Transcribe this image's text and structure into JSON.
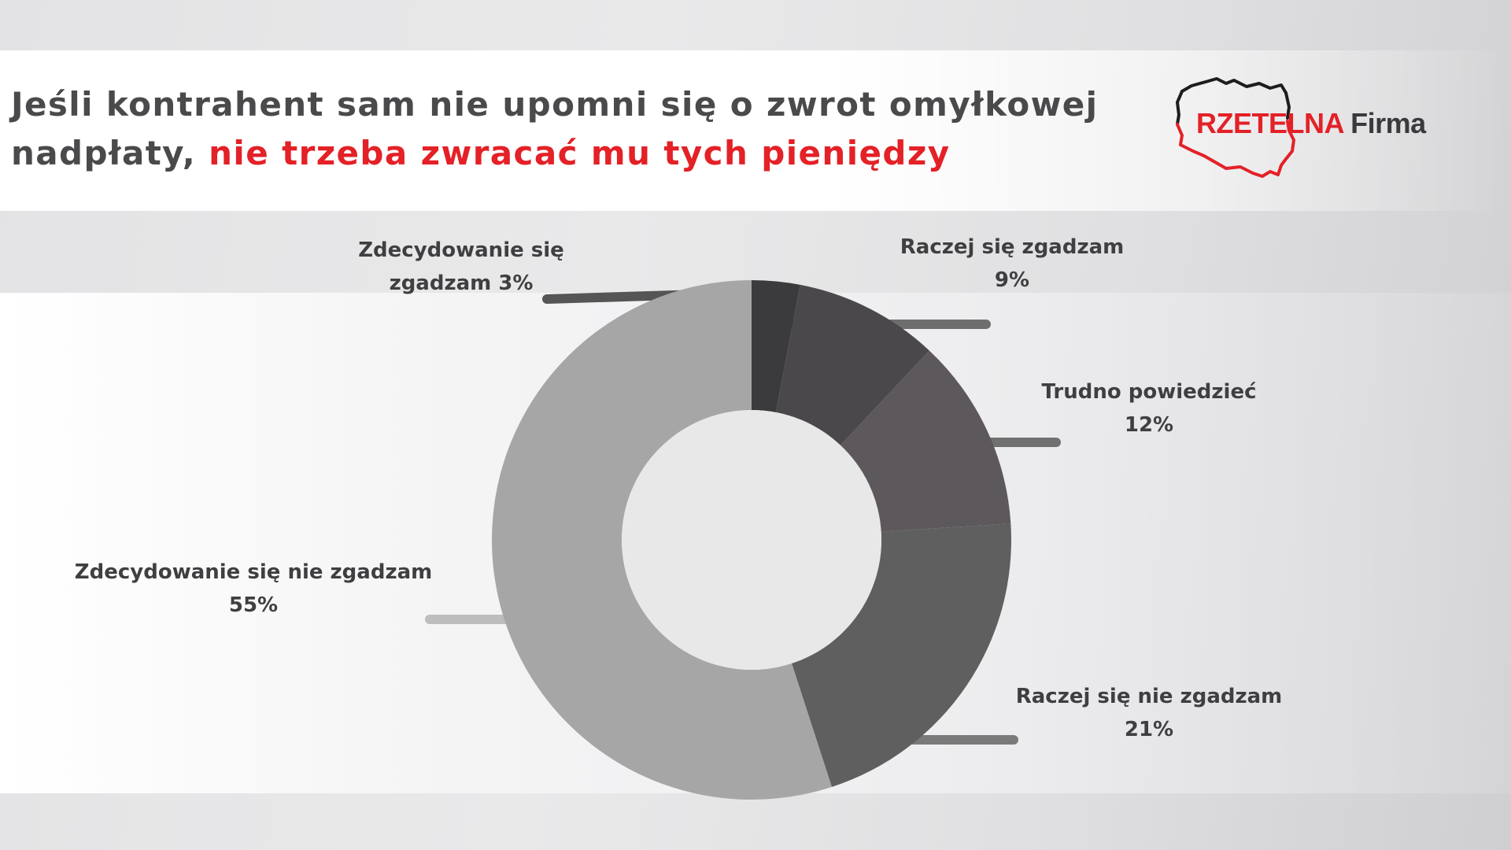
{
  "title": {
    "line1": "Jeśli kontrahent sam nie upomni się o zwrot omyłkowej",
    "line2_plain": "nadpłaty,",
    "line2_accent": "nie trzeba zwracać mu tych pieniędzy"
  },
  "logo": {
    "part1": "RZETELNA",
    "part2": "Firma"
  },
  "colors": {
    "accent": "#e32127",
    "text": "#4a4a4c",
    "slices": [
      "#3b3b3d",
      "#4a484b",
      "#5d585b",
      "#5f5f5f",
      "#a6a6a6"
    ],
    "leaders": [
      "#555555",
      "#6e6e6e",
      "#707070",
      "#7a7a7a",
      "#bdbdbd"
    ]
  },
  "chart_data": {
    "type": "pie",
    "donut": true,
    "categories": [
      "Zdecydowanie się zgadzam",
      "Raczej się zgadzam",
      "Trudno powiedzieć",
      "Raczej się nie zgadzam",
      "Zdecydowanie się nie zgadzam"
    ],
    "values": [
      3,
      9,
      12,
      21,
      55
    ],
    "labels": [
      {
        "line1": "Zdecydowanie się",
        "line2": "zgadzam  3%"
      },
      {
        "line1": "Raczej się zgadzam",
        "line2": "9%"
      },
      {
        "line1": "Trudno powiedzieć",
        "line2": "12%"
      },
      {
        "line1": "Raczej się nie zgadzam",
        "line2": "21%"
      },
      {
        "line1": "Zdecydowanie się nie zgadzam",
        "line2": "55%"
      }
    ],
    "legend": "none"
  }
}
